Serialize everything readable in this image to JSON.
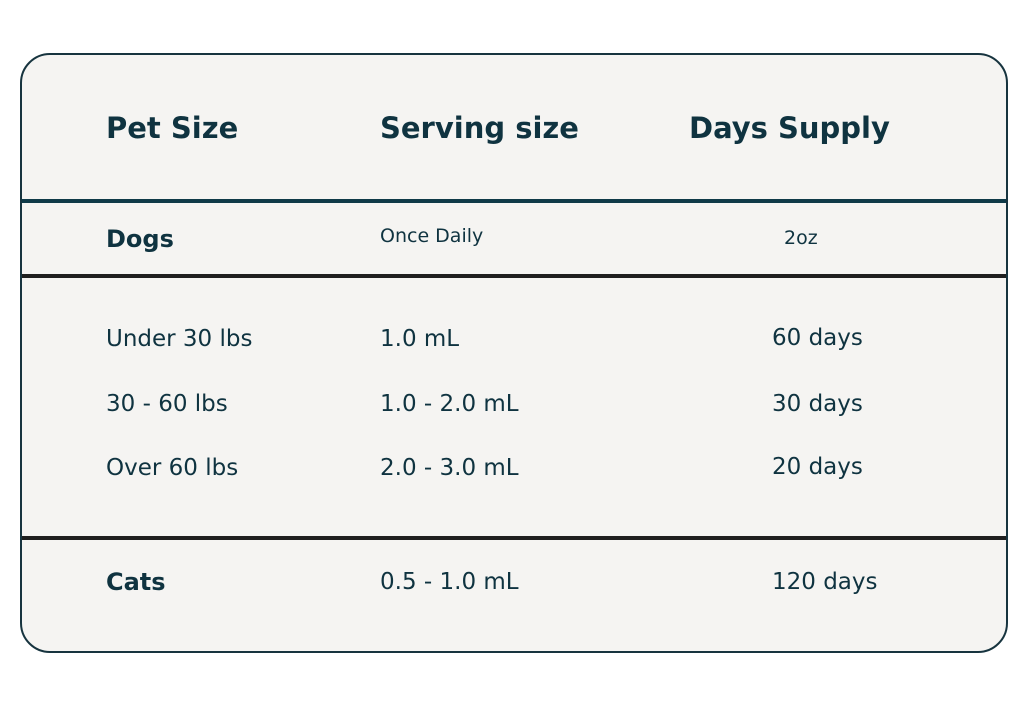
{
  "headers": [
    "Pet Size",
    "Serving size",
    "Days Supply"
  ],
  "dogs": {
    "label": "Dogs",
    "serving": "Once Daily",
    "supply": "2oz"
  },
  "rows": [
    {
      "size": "Under 30 lbs",
      "serving": "1.0 mL",
      "supply": "60 days"
    },
    {
      "size": "30 - 60 lbs",
      "serving": "1.0 - 2.0 mL",
      "supply": "30 days"
    },
    {
      "size": "Over 60 lbs",
      "serving": "2.0 - 3.0 mL",
      "supply": "20 days"
    }
  ],
  "cats": {
    "label": "Cats",
    "serving": "0.5 - 1.0 mL",
    "supply": "120 days"
  },
  "colors": {
    "text": "#0f3340",
    "background": "#f5f4f2",
    "header_rule": "#0f3a48",
    "rule": "#1f1f1f"
  }
}
